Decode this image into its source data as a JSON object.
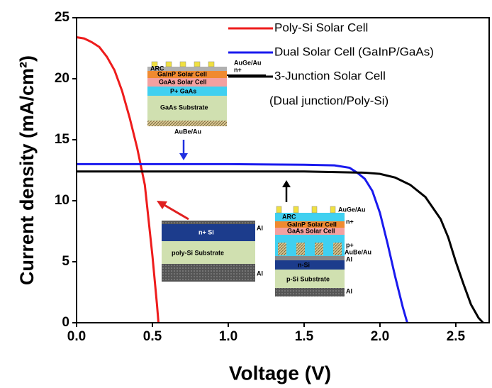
{
  "chart_data": {
    "type": "line",
    "x_label": "Voltage (V)",
    "y_label": "Current density (mA/cm²)",
    "xlim": [
      0,
      2.72
    ],
    "ylim": [
      0,
      25
    ],
    "xticks": [
      {
        "value": 0,
        "label": "0.0"
      },
      0.5,
      {
        "value": 1,
        "label": "1.0"
      },
      1.5,
      {
        "value": 2,
        "label": "2.0"
      },
      2.5
    ],
    "yticks": [
      0,
      5,
      10,
      15,
      20,
      25
    ],
    "legend": "upper right",
    "legend_note": "(Dual junction/Poly-Si)",
    "series": [
      {
        "name": "Poly-Si Solar Cell",
        "color": "#ee1c1c",
        "x": [
          0,
          0.05,
          0.1,
          0.15,
          0.2,
          0.25,
          0.3,
          0.35,
          0.4,
          0.45,
          0.5,
          0.53,
          0.54
        ],
        "values": [
          23.4,
          23.3,
          23.0,
          22.6,
          21.8,
          20.7,
          19.0,
          16.8,
          14.3,
          11.3,
          5.5,
          1.5,
          0
        ]
      },
      {
        "name": "Dual Solar Cell (GaInP/GaAs)",
        "color": "#1a1aee",
        "x": [
          0,
          0.5,
          1.0,
          1.5,
          1.7,
          1.8,
          1.85,
          1.9,
          1.95,
          2.0,
          2.05,
          2.1,
          2.15,
          2.18
        ],
        "values": [
          13.0,
          13.0,
          13.0,
          12.95,
          12.9,
          12.7,
          12.3,
          11.8,
          10.8,
          9.0,
          6.5,
          3.8,
          1.3,
          0
        ]
      },
      {
        "name": "3-Junction Solar Cell",
        "color": "#000000",
        "x": [
          0,
          0.5,
          1.0,
          1.5,
          1.9,
          2.0,
          2.1,
          2.2,
          2.3,
          2.4,
          2.45,
          2.5,
          2.55,
          2.6,
          2.65,
          2.68
        ],
        "values": [
          12.4,
          12.4,
          12.4,
          12.4,
          12.3,
          12.2,
          11.9,
          11.3,
          10.3,
          8.5,
          7.0,
          5.0,
          3.2,
          1.5,
          0.4,
          0
        ]
      }
    ],
    "insets": [
      {
        "labels": [
          "AuGe/Au",
          "n+",
          "ARC",
          "GaInP Solar Cell",
          "GaAs Solar Cell",
          "P+ GaAs",
          "GaAs Substrate",
          "AuBe/Au"
        ]
      },
      {
        "labels": [
          "n+ Si",
          "Al",
          "poly-Si Substrate",
          "Al"
        ]
      },
      {
        "labels": [
          "AuGe/Au",
          "ARC",
          "n+",
          "GaInP Solar Cell",
          "GaAs Solar Cell",
          "p+",
          "AuBe/Au",
          "Al",
          "n-Si",
          "p-Si Substrate",
          "Al"
        ]
      }
    ]
  }
}
